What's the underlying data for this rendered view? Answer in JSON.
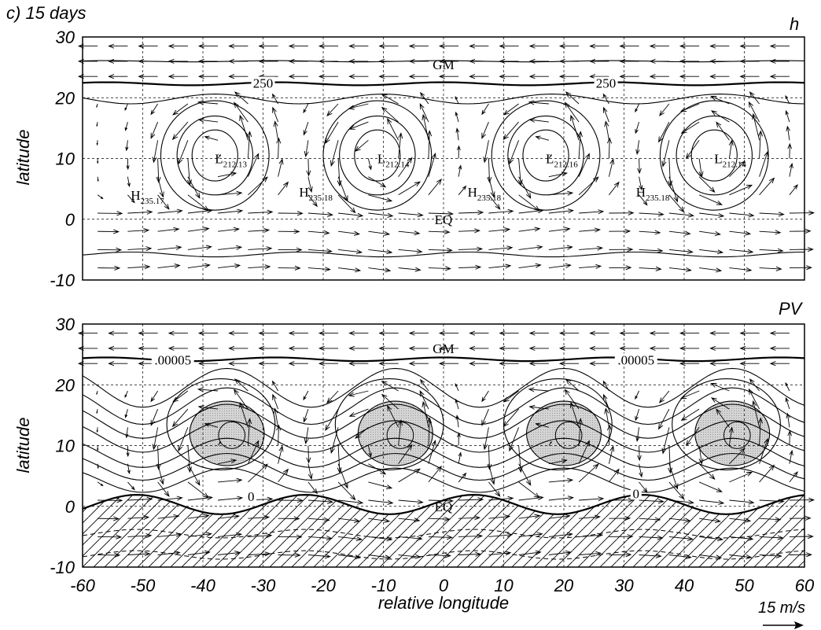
{
  "figure_label": "c) 15 days",
  "colors": {
    "ink": "#000000",
    "shade": "#c8c8c8",
    "grid": "#000000",
    "background": "#ffffff"
  },
  "scale_arrow": {
    "label": "15 m/s",
    "value": 15
  },
  "chart_data": [
    {
      "type": "vector-field-contour",
      "panel_label": "h",
      "xlabel": "",
      "ylabel": "latitude",
      "xlim": [
        -60,
        60
      ],
      "ylim": [
        -10,
        30
      ],
      "xticks": [
        -60,
        -50,
        -40,
        -30,
        -20,
        -10,
        0,
        10,
        20,
        30,
        40,
        50,
        60
      ],
      "yticks": [
        -10,
        0,
        10,
        20,
        30
      ],
      "grid": true,
      "annotations": [
        {
          "text": "GM",
          "x": 0,
          "y": 25.5
        },
        {
          "text": "EQ",
          "x": 0,
          "y": 0
        }
      ],
      "contour_labels": [
        {
          "text": "250",
          "x": -30,
          "y": 22.3
        },
        {
          "text": "250",
          "x": 27,
          "y": 22.3
        }
      ],
      "lows": [
        {
          "base": "L",
          "sub": "212.13",
          "x": -38,
          "y": 10
        },
        {
          "base": "L",
          "sub": "212.14",
          "x": -11,
          "y": 10
        },
        {
          "base": "L",
          "sub": "212.16",
          "x": 17,
          "y": 10
        },
        {
          "base": "L",
          "sub": "212.14",
          "x": 45,
          "y": 10
        }
      ],
      "highs": [
        {
          "base": "H",
          "sub": "235.17",
          "x": -52,
          "y": 4
        },
        {
          "base": "H",
          "sub": "235.18",
          "x": -24,
          "y": 4.5
        },
        {
          "base": "H",
          "sub": "235.18",
          "x": 4,
          "y": 4.5
        },
        {
          "base": "H",
          "sub": "235.18",
          "x": 32,
          "y": 4.5
        }
      ]
    },
    {
      "type": "vector-field-contour",
      "panel_label": "PV",
      "xlabel": "relative longitude",
      "ylabel": "latitude",
      "xlim": [
        -60,
        60
      ],
      "ylim": [
        -10,
        30
      ],
      "xticks": [
        -60,
        -50,
        -40,
        -30,
        -20,
        -10,
        0,
        10,
        20,
        30,
        40,
        50,
        60
      ],
      "yticks": [
        -10,
        0,
        10,
        20,
        30
      ],
      "grid": true,
      "annotations": [
        {
          "text": "GM",
          "x": 0,
          "y": 26
        },
        {
          "text": "EQ",
          "x": 0,
          "y": 0
        }
      ],
      "contour_labels": [
        {
          "text": ".00005",
          "x": -45,
          "y": 24
        },
        {
          "text": ".00005",
          "x": 32,
          "y": 24
        },
        {
          "text": "0",
          "x": -32,
          "y": 1.5
        },
        {
          "text": "0",
          "x": 32,
          "y": 2
        }
      ],
      "shaded_cores_centers_x": [
        -36,
        -8,
        20,
        48
      ],
      "shaded_cores_center_y": 12
    }
  ]
}
